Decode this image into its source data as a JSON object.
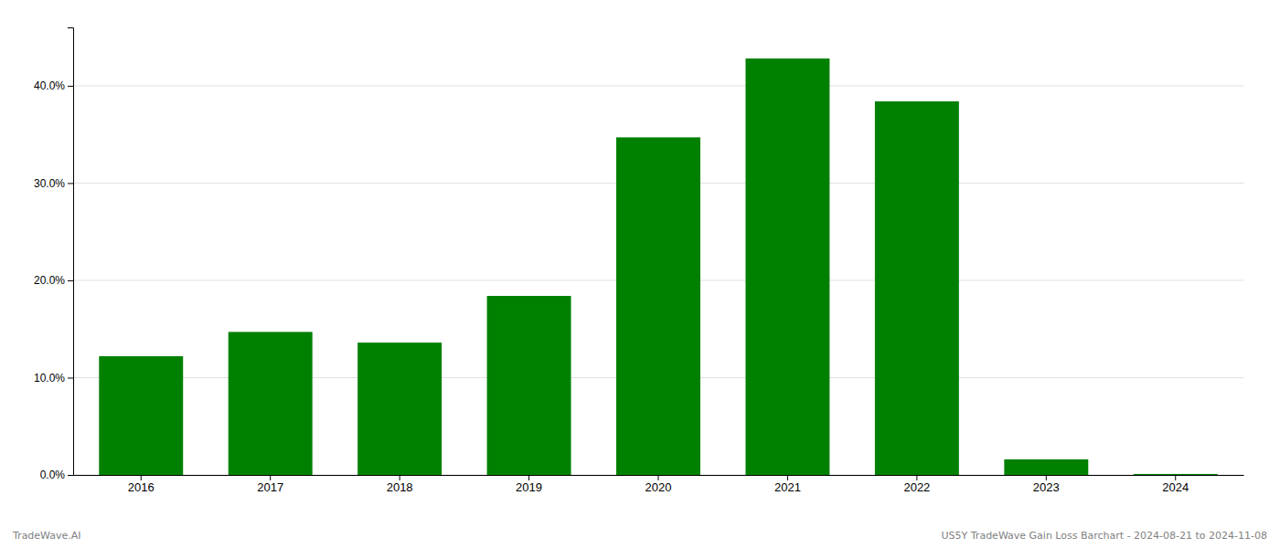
{
  "chart_data": {
    "type": "bar",
    "categories": [
      "2016",
      "2017",
      "2018",
      "2019",
      "2020",
      "2021",
      "2022",
      "2023",
      "2024"
    ],
    "values": [
      0.122,
      0.147,
      0.136,
      0.184,
      0.347,
      0.428,
      0.384,
      0.016,
      0.001
    ],
    "color": "#008000",
    "ylim": [
      0,
      0.46
    ],
    "yticks": [
      {
        "value": 0.0,
        "label": "0.0%"
      },
      {
        "value": 0.1,
        "label": "10.0%"
      },
      {
        "value": 0.2,
        "label": "20.0%"
      },
      {
        "value": 0.3,
        "label": "30.0%"
      },
      {
        "value": 0.4,
        "label": "40.0%"
      }
    ],
    "grid": true,
    "annotations": [
      "TradeWave.AI",
      "US5Y TradeWave Gain Loss Barchart - 2024-08-21 to 2024-11-08"
    ]
  }
}
